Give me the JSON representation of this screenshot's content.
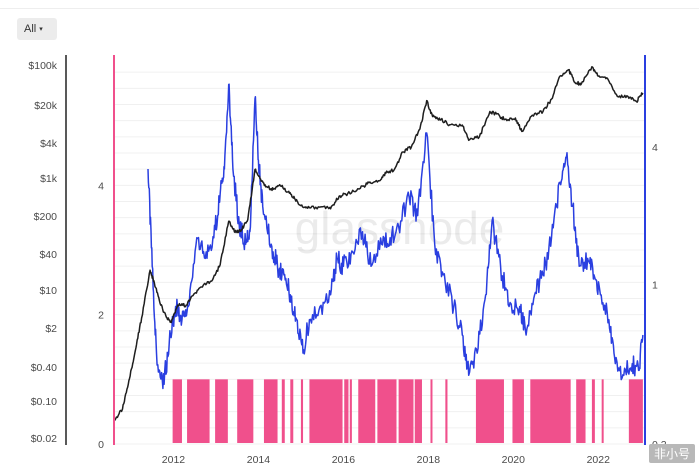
{
  "range_selector": {
    "label": "All",
    "caret": "▾"
  },
  "watermark": "glassnode",
  "corner_mark": "非小号",
  "colors": {
    "price_line": "#1e1e1e",
    "indicator_line": "#2a3fe0",
    "signal_band": "#f0508c",
    "left_axis": "#f0508c",
    "right_axis": "#2a3fe0",
    "price_axis": "#222222",
    "grid": "#f0f0f0"
  },
  "chart_data": {
    "type": "line",
    "title": "",
    "x_range": [
      2010.6,
      2023.1
    ],
    "x_ticks": [
      {
        "value": 2012,
        "label": "2012"
      },
      {
        "value": 2014,
        "label": "2014"
      },
      {
        "value": 2016,
        "label": "2016"
      },
      {
        "value": 2018,
        "label": "2018"
      },
      {
        "value": 2020,
        "label": "2020"
      },
      {
        "value": 2022,
        "label": "2022"
      }
    ],
    "price_axis": {
      "scale": "log",
      "range": [
        0.02,
        100000
      ],
      "ticks": [
        {
          "value": 100000,
          "label": "$100k"
        },
        {
          "value": 20000,
          "label": "$20k"
        },
        {
          "value": 4000,
          "label": "$4k"
        },
        {
          "value": 1000,
          "label": "$1k"
        },
        {
          "value": 200,
          "label": "$200"
        },
        {
          "value": 40,
          "label": "$40"
        },
        {
          "value": 10,
          "label": "$10"
        },
        {
          "value": 2,
          "label": "$2"
        },
        {
          "value": 0.4,
          "label": "$0.40"
        },
        {
          "value": 0.1,
          "label": "$0.10"
        },
        {
          "value": 0.02,
          "label": "$0.02"
        }
      ]
    },
    "signal_axis": {
      "scale": "linear",
      "range": [
        0,
        6
      ],
      "ticks": [
        {
          "value": 0,
          "label": "0"
        },
        {
          "value": 2,
          "label": "2"
        },
        {
          "value": 4,
          "label": "4"
        }
      ]
    },
    "indicator_axis": {
      "scale": "log",
      "range": [
        0.2,
        10
      ],
      "ticks": [
        {
          "value": 4,
          "label": "4"
        },
        {
          "value": 1,
          "label": "1"
        },
        {
          "value": 0.2,
          "label": "0.2"
        }
      ]
    },
    "series": [
      {
        "axis": "price",
        "points": [
          [
            2010.6,
            0.05
          ],
          [
            2010.8,
            0.08
          ],
          [
            2010.95,
            0.25
          ],
          [
            2011.1,
            0.8
          ],
          [
            2011.25,
            3
          ],
          [
            2011.45,
            20
          ],
          [
            2011.55,
            12
          ],
          [
            2011.7,
            5
          ],
          [
            2011.85,
            3
          ],
          [
            2011.95,
            2.5
          ],
          [
            2012.1,
            5
          ],
          [
            2012.3,
            5
          ],
          [
            2012.5,
            8
          ],
          [
            2012.7,
            11
          ],
          [
            2012.9,
            13
          ],
          [
            2013.1,
            25
          ],
          [
            2013.3,
            140
          ],
          [
            2013.45,
            90
          ],
          [
            2013.6,
            100
          ],
          [
            2013.75,
            150
          ],
          [
            2013.92,
            1100
          ],
          [
            2014.05,
            750
          ],
          [
            2014.2,
            550
          ],
          [
            2014.35,
            500
          ],
          [
            2014.5,
            600
          ],
          [
            2014.7,
            450
          ],
          [
            2014.85,
            350
          ],
          [
            2015.0,
            260
          ],
          [
            2015.2,
            240
          ],
          [
            2015.5,
            250
          ],
          [
            2015.7,
            230
          ],
          [
            2015.9,
            380
          ],
          [
            2016.1,
            420
          ],
          [
            2016.4,
            520
          ],
          [
            2016.6,
            650
          ],
          [
            2016.85,
            700
          ],
          [
            2017.0,
            950
          ],
          [
            2017.2,
            1100
          ],
          [
            2017.4,
            2200
          ],
          [
            2017.6,
            2700
          ],
          [
            2017.8,
            5500
          ],
          [
            2017.96,
            17000
          ],
          [
            2018.1,
            9000
          ],
          [
            2018.3,
            8000
          ],
          [
            2018.5,
            6500
          ],
          [
            2018.8,
            6400
          ],
          [
            2018.95,
            3500
          ],
          [
            2019.2,
            4000
          ],
          [
            2019.45,
            11000
          ],
          [
            2019.6,
            10000
          ],
          [
            2019.8,
            8000
          ],
          [
            2020.05,
            8500
          ],
          [
            2020.2,
            5000
          ],
          [
            2020.45,
            9500
          ],
          [
            2020.7,
            11000
          ],
          [
            2020.9,
            18000
          ],
          [
            2021.1,
            45000
          ],
          [
            2021.3,
            58000
          ],
          [
            2021.45,
            35000
          ],
          [
            2021.6,
            33000
          ],
          [
            2021.85,
            65000
          ],
          [
            2022.0,
            45000
          ],
          [
            2022.2,
            42000
          ],
          [
            2022.45,
            20000
          ],
          [
            2022.7,
            20000
          ],
          [
            2022.9,
            16500
          ],
          [
            2023.05,
            23000
          ]
        ]
      },
      {
        "axis": "indicator",
        "points": [
          [
            2011.4,
            3.2
          ],
          [
            2011.5,
            1.2
          ],
          [
            2011.6,
            0.5
          ],
          [
            2011.75,
            0.35
          ],
          [
            2011.9,
            0.55
          ],
          [
            2012.05,
            0.8
          ],
          [
            2012.2,
            0.7
          ],
          [
            2012.35,
            0.8
          ],
          [
            2012.55,
            1.6
          ],
          [
            2012.75,
            1.3
          ],
          [
            2012.95,
            1.6
          ],
          [
            2013.1,
            2.5
          ],
          [
            2013.2,
            3.2
          ],
          [
            2013.3,
            7.5
          ],
          [
            2013.4,
            3.2
          ],
          [
            2013.55,
            1.8
          ],
          [
            2013.7,
            1.5
          ],
          [
            2013.8,
            1.7
          ],
          [
            2013.92,
            6.5
          ],
          [
            2014.0,
            3.5
          ],
          [
            2014.1,
            2.2
          ],
          [
            2014.3,
            1.5
          ],
          [
            2014.45,
            1.2
          ],
          [
            2014.6,
            1.1
          ],
          [
            2014.75,
            0.9
          ],
          [
            2014.9,
            0.7
          ],
          [
            2015.05,
            0.5
          ],
          [
            2015.2,
            0.7
          ],
          [
            2015.45,
            0.8
          ],
          [
            2015.7,
            0.9
          ],
          [
            2015.85,
            1.3
          ],
          [
            2016.0,
            1.2
          ],
          [
            2016.2,
            1.4
          ],
          [
            2016.45,
            1.7
          ],
          [
            2016.65,
            1.2
          ],
          [
            2016.9,
            1.5
          ],
          [
            2017.1,
            1.6
          ],
          [
            2017.3,
            1.8
          ],
          [
            2017.55,
            2.4
          ],
          [
            2017.75,
            2.0
          ],
          [
            2017.96,
            4.6
          ],
          [
            2018.15,
            1.5
          ],
          [
            2018.35,
            1.1
          ],
          [
            2018.6,
            0.8
          ],
          [
            2018.8,
            0.6
          ],
          [
            2018.95,
            0.4
          ],
          [
            2019.15,
            0.5
          ],
          [
            2019.35,
            0.9
          ],
          [
            2019.5,
            1.9
          ],
          [
            2019.7,
            1.2
          ],
          [
            2019.9,
            0.8
          ],
          [
            2020.15,
            0.8
          ],
          [
            2020.3,
            0.6
          ],
          [
            2020.5,
            0.9
          ],
          [
            2020.7,
            1.1
          ],
          [
            2020.9,
            1.6
          ],
          [
            2021.1,
            2.8
          ],
          [
            2021.25,
            3.6
          ],
          [
            2021.4,
            2.2
          ],
          [
            2021.55,
            1.2
          ],
          [
            2021.75,
            1.3
          ],
          [
            2021.9,
            1.1
          ],
          [
            2022.05,
            0.9
          ],
          [
            2022.25,
            0.7
          ],
          [
            2022.4,
            0.45
          ],
          [
            2022.6,
            0.4
          ],
          [
            2022.8,
            0.45
          ],
          [
            2022.95,
            0.42
          ],
          [
            2023.05,
            0.6
          ]
        ]
      }
    ],
    "signal_periods": [
      [
        2011.98,
        2012.2
      ],
      [
        2012.32,
        2012.85
      ],
      [
        2012.98,
        2013.28
      ],
      [
        2013.5,
        2013.88
      ],
      [
        2014.13,
        2014.45
      ],
      [
        2014.55,
        2014.62
      ],
      [
        2014.75,
        2014.82
      ],
      [
        2015.0,
        2015.05
      ],
      [
        2015.2,
        2015.98
      ],
      [
        2016.02,
        2016.12
      ],
      [
        2016.15,
        2016.2
      ],
      [
        2016.35,
        2016.75
      ],
      [
        2016.8,
        2017.25
      ],
      [
        2017.3,
        2017.65
      ],
      [
        2017.68,
        2017.85
      ],
      [
        2018.05,
        2018.08
      ],
      [
        2018.4,
        2018.45
      ],
      [
        2019.12,
        2019.78
      ],
      [
        2019.98,
        2020.25
      ],
      [
        2020.4,
        2021.35
      ],
      [
        2021.48,
        2021.7
      ],
      [
        2021.85,
        2021.92
      ],
      [
        2022.08,
        2022.12
      ],
      [
        2022.72,
        2023.05
      ]
    ]
  }
}
